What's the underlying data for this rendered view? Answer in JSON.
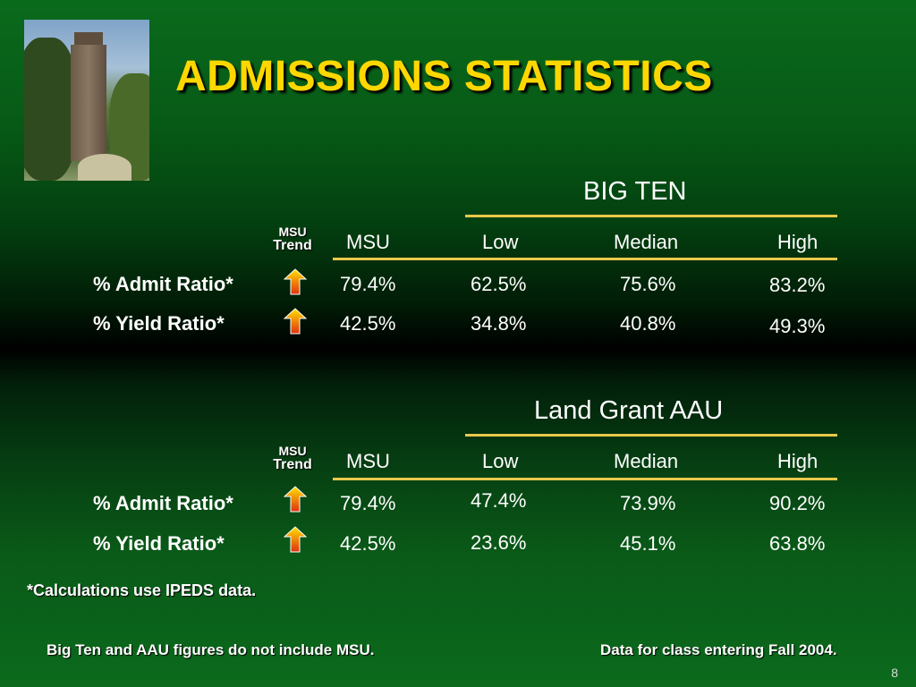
{
  "title": "ADMISSIONS STATISTICS",
  "trend_label": {
    "line1": "MSU",
    "line2": "Trend"
  },
  "headers": {
    "msu": "MSU",
    "low": "Low",
    "median": "Median",
    "high": "High"
  },
  "tables": [
    {
      "group": "BIG TEN",
      "rows": [
        {
          "label": "% Admit Ratio*",
          "trend": "up",
          "msu": "79.4%",
          "low": "62.5%",
          "median": "75.6%",
          "high": "83.2%"
        },
        {
          "label": "% Yield Ratio*",
          "trend": "up",
          "msu": "42.5%",
          "low": "34.8%",
          "median": "40.8%",
          "high": "49.3%"
        }
      ]
    },
    {
      "group": "Land Grant AAU",
      "rows": [
        {
          "label": "% Admit Ratio*",
          "trend": "up",
          "msu": "79.4%",
          "low": "47.4%",
          "median": "73.9%",
          "high": "90.2%"
        },
        {
          "label": "% Yield Ratio*",
          "trend": "up",
          "msu": "42.5%",
          "low": "23.6%",
          "median": "45.1%",
          "high": "63.8%"
        }
      ]
    }
  ],
  "footnotes": {
    "calc": "*Calculations use IPEDS data.",
    "exclude": "Big Ten and AAU figures do not include MSU.",
    "class": "Data for class entering Fall 2004."
  },
  "page_number": "8",
  "colors": {
    "title": "#ffd700",
    "rule": "#e8c84a",
    "arrow_top": "#ffe000",
    "arrow_bottom": "#e03010"
  },
  "icons": {
    "trend_arrow": "up-arrow-icon",
    "photo": "campus-tower-photo"
  }
}
